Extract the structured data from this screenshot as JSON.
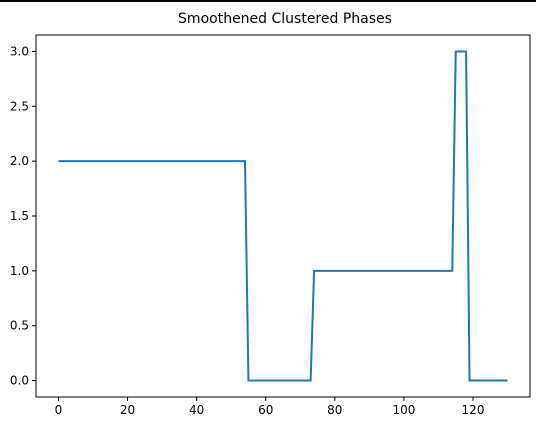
{
  "chart_data": {
    "type": "line",
    "title": "Smoothened Clustered Phases",
    "xlabel": "",
    "ylabel": "",
    "xlim": [
      -6.5,
      136.5
    ],
    "ylim": [
      -0.15,
      3.15
    ],
    "xticks": [
      0,
      20,
      40,
      60,
      80,
      100,
      120
    ],
    "yticks": [
      0.0,
      0.5,
      1.0,
      1.5,
      2.0,
      2.5,
      3.0
    ],
    "xtick_labels": [
      "0",
      "20",
      "40",
      "60",
      "80",
      "100",
      "120"
    ],
    "ytick_labels": [
      "0.0",
      "0.5",
      "1.0",
      "1.5",
      "2.0",
      "2.5",
      "3.0"
    ],
    "grid": false,
    "color": "#1f77b4",
    "series": [
      {
        "x": [
          0,
          54,
          55,
          73,
          74,
          114,
          115,
          118,
          119,
          130
        ],
        "y": [
          2,
          2,
          0,
          0,
          1,
          1,
          3,
          3,
          0,
          0
        ]
      }
    ]
  }
}
